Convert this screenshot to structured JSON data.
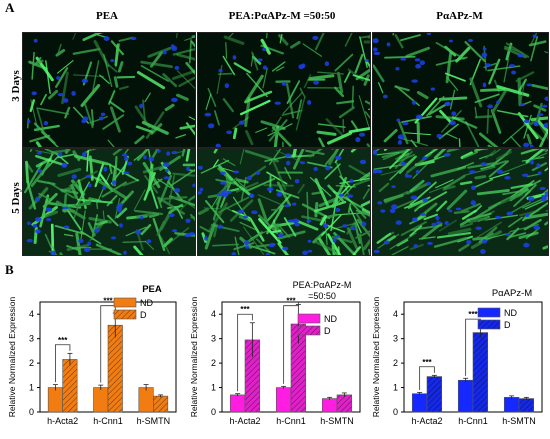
{
  "panel_a": {
    "letter": "A",
    "columns": [
      "PEA",
      "PEA:PαAPz-M =50:50",
      "PαAPz-M"
    ],
    "rows": [
      "3 Days",
      "5 Days"
    ],
    "images": [
      {
        "row": 0,
        "col": 0,
        "label": "PEA 3 Days micrograph"
      },
      {
        "row": 0,
        "col": 1,
        "label": "PEA:PaAPz-M 3 Days micrograph"
      },
      {
        "row": 0,
        "col": 2,
        "label": "PaAPz-M 3 Days micrograph"
      },
      {
        "row": 1,
        "col": 0,
        "label": "PEA 5 Days micrograph"
      },
      {
        "row": 1,
        "col": 1,
        "label": "PEA:PaAPz-M 5 Days micrograph"
      },
      {
        "row": 1,
        "col": 2,
        "label": "PaAPz-M 5 Days micrograph"
      }
    ]
  },
  "panel_b": {
    "letter": "B"
  },
  "chart_data": [
    {
      "type": "bar",
      "title": "PEA",
      "ylabel": "Relative Normalized Expression",
      "ylim": [
        0,
        4.5
      ],
      "yticks": [
        "0",
        "1",
        "2",
        "3",
        "4"
      ],
      "categories": [
        "h-Acta2",
        "h-Cnn1",
        "h-SMTN"
      ],
      "series": [
        {
          "name": "ND",
          "values": [
            1.0,
            1.0,
            1.0
          ],
          "err": [
            0.12,
            0.1,
            0.12
          ],
          "color": "#f07c12",
          "hatched": false
        },
        {
          "name": "D",
          "values": [
            2.15,
            3.55,
            0.65
          ],
          "err": [
            0.25,
            0.5,
            0.05
          ],
          "color": "#f07c12",
          "hatched": true
        }
      ],
      "significance": [
        {
          "category": "h-Acta2",
          "label": "***"
        },
        {
          "category": "h-Cnn1",
          "label": "***"
        }
      ]
    },
    {
      "type": "bar",
      "title": "PEA:PαAPz-M =50:50",
      "ylabel": "Relative Normalized Expression",
      "ylim": [
        0,
        4.5
      ],
      "yticks": [
        "0",
        "1",
        "2",
        "3",
        "4"
      ],
      "categories": [
        "h-Acta2",
        "h-Cnn1",
        "h-SMTN"
      ],
      "series": [
        {
          "name": "ND",
          "values": [
            0.7,
            1.0,
            0.55
          ],
          "err": [
            0.05,
            0.05,
            0.05
          ],
          "color": "#ff1de1",
          "hatched": false
        },
        {
          "name": "D",
          "values": [
            2.95,
            3.6,
            0.7
          ],
          "err": [
            0.7,
            0.8,
            0.08
          ],
          "color": "#e020c8",
          "hatched": true
        }
      ],
      "significance": [
        {
          "category": "h-Acta2",
          "label": "***"
        },
        {
          "category": "h-Cnn1",
          "label": "***"
        }
      ]
    },
    {
      "type": "bar",
      "title": "PαAPz-M",
      "ylabel": "Relative Normalized Expression",
      "ylim": [
        0,
        4.5
      ],
      "yticks": [
        "0",
        "1",
        "2",
        "3",
        "4"
      ],
      "categories": [
        "h-Acta2",
        "h-Cnn1",
        "h-SMTN"
      ],
      "series": [
        {
          "name": "ND",
          "values": [
            0.75,
            1.3,
            0.6
          ],
          "err": [
            0.05,
            0.08,
            0.06
          ],
          "color": "#1428ff",
          "hatched": false
        },
        {
          "name": "D",
          "values": [
            1.45,
            3.25,
            0.55
          ],
          "err": [
            0.05,
            0.2,
            0.05
          ],
          "color": "#1428e6",
          "hatched": true
        }
      ],
      "significance": [
        {
          "category": "h-Acta2",
          "label": "***"
        },
        {
          "category": "h-Cnn1",
          "label": "***"
        }
      ]
    }
  ]
}
